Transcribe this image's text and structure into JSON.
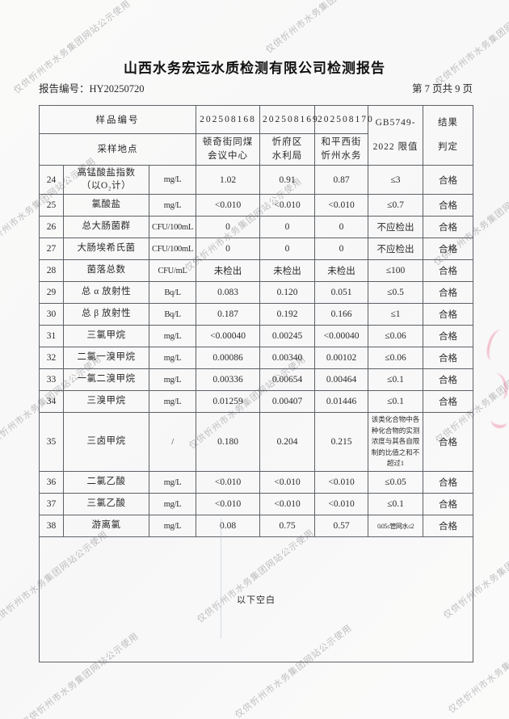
{
  "page": {
    "title": "山西水务宏远水质检测有限公司检测报告",
    "report_no": "报告编号：HY20250720",
    "page_indicator": "第 7 页共 9 页"
  },
  "watermark": {
    "text": "仅供忻州市水务集团网站公示使用"
  },
  "table": {
    "header": {
      "sample_id_label": "样品编号",
      "sample_ids": [
        "202508168",
        "202508169",
        "202508170"
      ],
      "location_label": "采样地点",
      "locations": [
        "顿奇街同煤\n会议中心",
        "忻府区\n水利局",
        "和平西街\n忻州水务"
      ],
      "limit_header": "GB5749-\n2022 限值",
      "result_header": "结果\n判定"
    },
    "rows": [
      {
        "no": "24",
        "name": "高锰酸盐指数\n（以O₂计）",
        "unit": "mg/L",
        "v": [
          "1.02",
          "0.91",
          "0.87"
        ],
        "limit": "≤3",
        "result": "合格"
      },
      {
        "no": "25",
        "name": "氯酸盐",
        "unit": "mg/L",
        "v": [
          "<0.010",
          "<0.010",
          "<0.010"
        ],
        "limit": "≤0.7",
        "result": "合格"
      },
      {
        "no": "26",
        "name": "总大肠菌群",
        "unit": "CFU/100mL",
        "v": [
          "0",
          "0",
          "0"
        ],
        "limit": "不应检出",
        "result": "合格"
      },
      {
        "no": "27",
        "name": "大肠埃希氏菌",
        "unit": "CFU/100mL",
        "v": [
          "0",
          "0",
          "0"
        ],
        "limit": "不应检出",
        "result": "合格"
      },
      {
        "no": "28",
        "name": "菌落总数",
        "unit": "CFU/mL",
        "v": [
          "未检出",
          "未检出",
          "未检出"
        ],
        "limit": "≤100",
        "result": "合格"
      },
      {
        "no": "29",
        "name": "总 α 放射性",
        "unit": "Bq/L",
        "v": [
          "0.083",
          "0.120",
          "0.051"
        ],
        "limit": "≤0.5",
        "result": "合格"
      },
      {
        "no": "30",
        "name": "总 β 放射性",
        "unit": "Bq/L",
        "v": [
          "0.187",
          "0.192",
          "0.166"
        ],
        "limit": "≤1",
        "result": "合格"
      },
      {
        "no": "31",
        "name": "三氯甲烷",
        "unit": "mg/L",
        "v": [
          "<0.00040",
          "0.00245",
          "<0.00040"
        ],
        "limit": "≤0.06",
        "result": "合格"
      },
      {
        "no": "32",
        "name": "二氯一溴甲烷",
        "unit": "mg/L",
        "v": [
          "0.00086",
          "0.00340",
          "0.00102"
        ],
        "limit": "≤0.06",
        "result": "合格"
      },
      {
        "no": "33",
        "name": "一氯二溴甲烷",
        "unit": "mg/L",
        "v": [
          "0.00336",
          "0.00654",
          "0.00464"
        ],
        "limit": "≤0.1",
        "result": "合格"
      },
      {
        "no": "34",
        "name": "三溴甲烷",
        "unit": "mg/L",
        "v": [
          "0.01259",
          "0.00407",
          "0.01446"
        ],
        "limit": "≤0.1",
        "result": "合格"
      },
      {
        "no": "35",
        "name": "三卤甲烷",
        "unit": "/",
        "v": [
          "0.180",
          "0.204",
          "0.215"
        ],
        "limit": "该类化合物中各种化合物的实测浓度与其各自限制的比值之和不超过1",
        "result": "合格"
      },
      {
        "no": "36",
        "name": "二氯乙酸",
        "unit": "mg/L",
        "v": [
          "<0.010",
          "<0.010",
          "<0.010"
        ],
        "limit": "≤0.05",
        "result": "合格"
      },
      {
        "no": "37",
        "name": "三氯乙酸",
        "unit": "mg/L",
        "v": [
          "<0.010",
          "<0.010",
          "<0.010"
        ],
        "limit": "≤0.1",
        "result": "合格"
      },
      {
        "no": "38",
        "name": "游离氯",
        "unit": "mg/L",
        "v": [
          "0.08",
          "0.75",
          "0.57"
        ],
        "limit": "0.05≤管网水≤2",
        "result": "合格"
      }
    ],
    "footer_note": "以下空白"
  }
}
